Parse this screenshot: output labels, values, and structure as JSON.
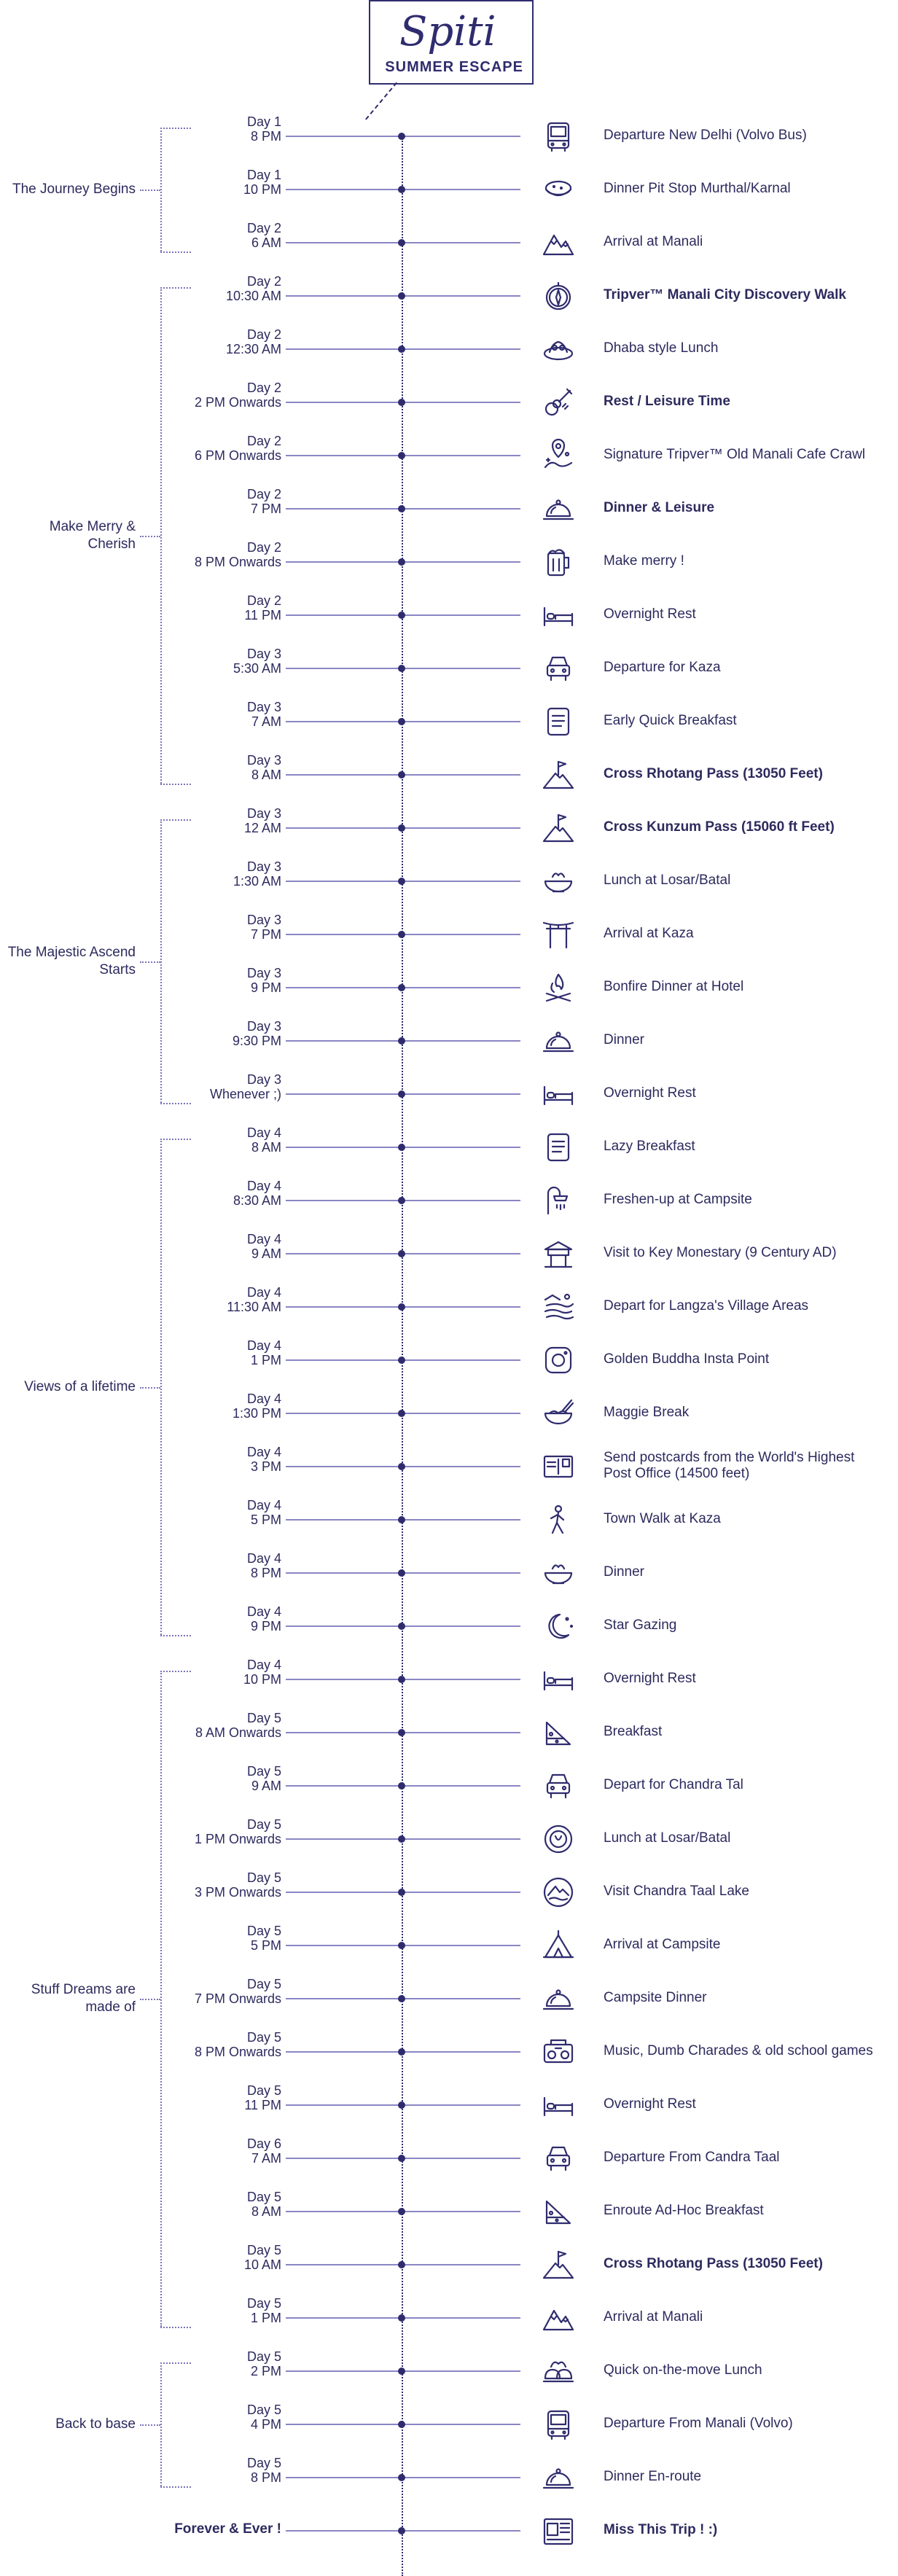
{
  "header": {
    "logo_script": "Spiti",
    "logo_tagline": "SUMMER ESCAPE"
  },
  "phases": [
    {
      "label": "The Journey Begins"
    },
    {
      "label": "Make Merry & Cherish"
    },
    {
      "label": "The Majestic Ascend Starts"
    },
    {
      "label": "Views of a lifetime"
    },
    {
      "label": "Stuff Dreams are made of"
    },
    {
      "label": "Back to base"
    }
  ],
  "events": [
    {
      "day": "Day 1",
      "time": "8 PM",
      "activity": "Departure New Delhi (Volvo Bus)",
      "icon": "bus-icon"
    },
    {
      "day": "Day 1",
      "time": "10 PM",
      "activity": "Dinner Pit Stop Murthal/Karnal",
      "icon": "paratha-icon"
    },
    {
      "day": "Day 2",
      "time": "6 AM",
      "activity": "Arrival at Manali",
      "icon": "mountains-icon"
    },
    {
      "day": "Day 2",
      "time": "10:30 AM",
      "activity": "Tripver™ Manali City Discovery Walk",
      "icon": "compass-icon",
      "bold": true
    },
    {
      "day": "Day 2",
      "time": "12:30 AM",
      "activity": "Dhaba style Lunch",
      "icon": "thali-icon"
    },
    {
      "day": "Day 2",
      "time": "2 PM Onwards",
      "activity": "Rest / Leisure Time",
      "icon": "guitar-icon",
      "bold": true
    },
    {
      "day": "Day 2",
      "time": "6 PM Onwards",
      "activity": "Signature Tripver™ Old Manali Cafe Crawl",
      "icon": "map-pin-icon"
    },
    {
      "day": "Day 2",
      "time": "7 PM",
      "activity": "Dinner & Leisure",
      "icon": "cloche-icon",
      "bold": true
    },
    {
      "day": "Day 2",
      "time": "8 PM Onwards",
      "activity": "Make merry !",
      "icon": "beer-mug-icon"
    },
    {
      "day": "Day 2",
      "time": "11 PM",
      "activity": "Overnight Rest",
      "icon": "bed-icon"
    },
    {
      "day": "Day 3",
      "time": "5:30 AM",
      "activity": "Departure for Kaza",
      "icon": "car-icon"
    },
    {
      "day": "Day 3",
      "time": "7 AM",
      "activity": "Early Quick Breakfast",
      "icon": "menu-card-icon"
    },
    {
      "day": "Day 3",
      "time": "8 AM",
      "activity": "Cross Rhotang Pass (13050 Feet)",
      "icon": "mountain-flag-icon",
      "bold": true
    },
    {
      "day": "Day 3",
      "time": "12 AM",
      "activity": "Cross Kunzum Pass (15060 ft Feet)",
      "icon": "mountain-flag-icon",
      "bold": true
    },
    {
      "day": "Day 3",
      "time": "1:30 AM",
      "activity": "Lunch at Losar/Batal",
      "icon": "bowl-icon"
    },
    {
      "day": "Day 3",
      "time": "7 PM",
      "activity": "Arrival at Kaza",
      "icon": "gate-icon"
    },
    {
      "day": "Day 3",
      "time": "9 PM",
      "activity": "Bonfire Dinner at Hotel",
      "icon": "bonfire-icon"
    },
    {
      "day": "Day 3",
      "time": "9:30 PM",
      "activity": "Dinner",
      "icon": "cloche-icon"
    },
    {
      "day": "Day 3",
      "time": "Whenever ;)",
      "activity": "Overnight Rest",
      "icon": "bed-icon"
    },
    {
      "day": "Day 4",
      "time": "8 AM",
      "activity": "Lazy Breakfast",
      "icon": "menu-card-icon"
    },
    {
      "day": "Day 4",
      "time": "8:30 AM",
      "activity": "Freshen-up at Campsite",
      "icon": "shower-icon"
    },
    {
      "day": "Day 4",
      "time": "9 AM",
      "activity": "Visit to Key Monestary (9 Century AD)",
      "icon": "monastery-icon"
    },
    {
      "day": "Day 4",
      "time": "11:30 AM",
      "activity": "Depart for Langza's Village Areas",
      "icon": "village-icon"
    },
    {
      "day": "Day 4",
      "time": "1 PM",
      "activity": "Golden Buddha Insta Point",
      "icon": "camera-icon"
    },
    {
      "day": "Day 4",
      "time": "1:30 PM",
      "activity": "Maggie Break",
      "icon": "noodle-bowl-icon"
    },
    {
      "day": "Day 4",
      "time": "3 PM",
      "activity": "Send postcards from the World's Highest Post Office (14500 feet)",
      "activity_line1": "Send postcards from the World's Highest",
      "activity_line2": "Post Office (14500 feet)",
      "icon": "postcard-icon"
    },
    {
      "day": "Day 4",
      "time": "5 PM",
      "activity": "Town Walk at Kaza",
      "icon": "walker-icon"
    },
    {
      "day": "Day 4",
      "time": "8 PM",
      "activity": "Dinner",
      "icon": "bowl-icon"
    },
    {
      "day": "Day 4",
      "time": "9 PM",
      "activity": "Star Gazing",
      "icon": "moon-stars-icon"
    },
    {
      "day": "Day 4",
      "time": "10 PM",
      "activity": "Overnight Rest",
      "icon": "bed-icon"
    },
    {
      "day": "Day 5",
      "time": "8 AM Onwards",
      "activity": "Breakfast",
      "icon": "cheese-icon"
    },
    {
      "day": "Day 5",
      "time": "9 AM",
      "activity": "Depart for Chandra Tal",
      "icon": "car-icon"
    },
    {
      "day": "Day 5",
      "time": "1 PM Onwards",
      "activity": "Lunch at Losar/Batal",
      "icon": "plate-icon"
    },
    {
      "day": "Day 5",
      "time": "3 PM Onwards",
      "activity": "Visit Chandra Taal Lake",
      "icon": "lake-icon"
    },
    {
      "day": "Day 5",
      "time": "5 PM",
      "activity": "Arrival at Campsite",
      "icon": "tent-icon"
    },
    {
      "day": "Day 5",
      "time": "7 PM Onwards",
      "activity": "Campsite Dinner",
      "icon": "cloche-icon"
    },
    {
      "day": "Day 5",
      "time": "8 PM Onwards",
      "activity": "Music, Dumb Charades & old school games",
      "icon": "boombox-icon"
    },
    {
      "day": "Day 5",
      "time": "11 PM",
      "activity": "Overnight Rest",
      "icon": "bed-icon"
    },
    {
      "day": "Day 6",
      "time": "7 AM",
      "activity": "Departure From Candra Taal",
      "icon": "car-icon"
    },
    {
      "day": "Day 5",
      "time": "8 AM",
      "activity": "Enroute Ad-Hoc Breakfast",
      "icon": "cheese-icon"
    },
    {
      "day": "Day 5",
      "time": "10 AM",
      "activity": "Cross Rhotang Pass (13050 Feet)",
      "icon": "mountain-flag-icon",
      "bold": true
    },
    {
      "day": "Day 5",
      "time": "1 PM",
      "activity": "Arrival at Manali",
      "icon": "mountains-icon"
    },
    {
      "day": "Day 5",
      "time": "2 PM",
      "activity": "Quick on-the-move Lunch",
      "icon": "momos-icon"
    },
    {
      "day": "Day 5",
      "time": "4 PM",
      "activity": "Departure From Manali (Volvo)",
      "icon": "bus-icon"
    },
    {
      "day": "Day 5",
      "time": "8 PM",
      "activity": "Dinner En-route",
      "icon": "cloche-icon"
    }
  ],
  "finale": {
    "label": "Forever & Ever !",
    "activity": "Miss This Trip ! :)",
    "icon": "newspaper-icon"
  }
}
